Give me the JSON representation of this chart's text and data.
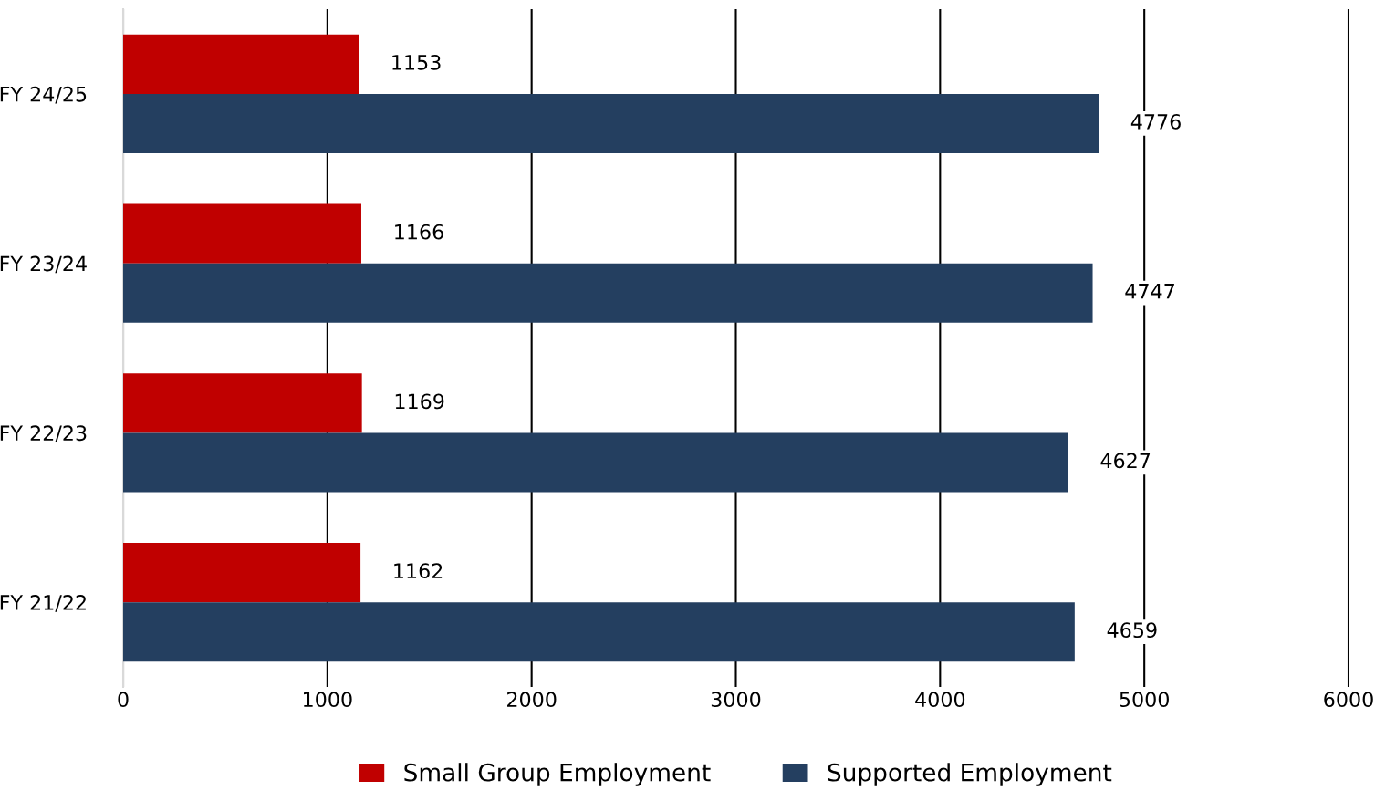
{
  "chart_data": {
    "type": "bar",
    "orientation": "horizontal",
    "categories": [
      "FY 24/25",
      "FY 23/24",
      "FY 22/23",
      "FY 21/22"
    ],
    "series": [
      {
        "name": "Small Group Employment",
        "color": "#c00000",
        "values": [
          1153,
          1166,
          1169,
          1162
        ]
      },
      {
        "name": "Supported Employment",
        "color": "#243f60",
        "values": [
          4776,
          4747,
          4627,
          4659
        ]
      }
    ],
    "xlim": [
      0,
      6000
    ],
    "xticks": [
      0,
      1000,
      2000,
      3000,
      4000,
      5000,
      6000
    ],
    "grid": "x",
    "legend": "bottom",
    "data_labels": true
  }
}
